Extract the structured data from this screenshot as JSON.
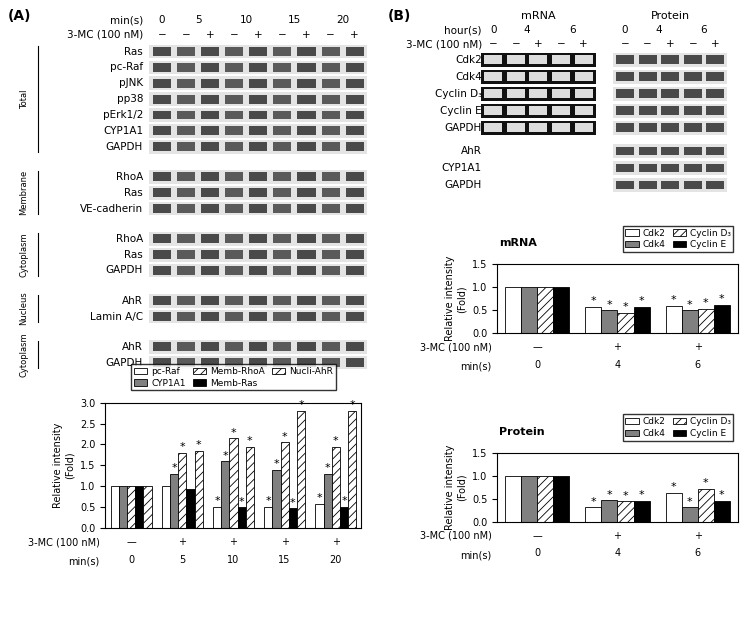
{
  "blots": {
    "A": {
      "panel_label": "(A)",
      "time_label": "min(s)",
      "times": [
        "0",
        "5",
        "10",
        "15",
        "20"
      ],
      "treatment_label": "3-MC (100 nM)",
      "treatment": [
        "−",
        "−",
        "+",
        "−",
        "+",
        "−",
        "+",
        "−",
        "+"
      ],
      "sections": [
        {
          "name": "Total",
          "rows": [
            "Ras",
            "pc-Raf",
            "pJNK",
            "pp38",
            "pErk1/2",
            "CYP1A1",
            "GAPDH"
          ]
        },
        {
          "name": "Membrane",
          "rows": [
            "RhoA",
            "Ras",
            "VE-cadherin"
          ]
        },
        {
          "name": "Cytoplasm",
          "rows": [
            "RhoA",
            "Ras",
            "GAPDH"
          ]
        },
        {
          "name": "Nucleus",
          "rows": [
            "AhR",
            "Lamin A/C"
          ]
        },
        {
          "name": "Cytoplasm",
          "rows": [
            "AhR",
            "GAPDH"
          ]
        }
      ]
    },
    "B": {
      "panel_label": "(B)",
      "time_label": "hour(s)",
      "times": [
        "0",
        "4",
        "6"
      ],
      "treatment_label": "3-MC (100 nM)",
      "treatment": [
        "−",
        "−",
        "+",
        "−",
        "+"
      ],
      "gels": [
        "mRNA",
        "Protein"
      ],
      "rows": [
        "Cdk2",
        "Cdk4",
        "Cyclin D₃",
        "Cyclin E",
        "GAPDH"
      ],
      "protein_rows": [
        "AhR",
        "CYP1A1",
        "GAPDH"
      ]
    }
  },
  "chart_data": [
    {
      "type": "bar",
      "ylabel": "Relative intensity\n(Fold)",
      "categories": [
        "0",
        "5",
        "10",
        "15",
        "20"
      ],
      "xlabel": "min(s)",
      "treatment_label": "3-MC (100 nM)",
      "treatment": [
        "—",
        "+",
        "+",
        "+",
        "+"
      ],
      "ylim": [
        0.0,
        3.0
      ],
      "yticks": [
        0.0,
        0.5,
        1.0,
        1.5,
        2.0,
        2.5,
        3.0
      ],
      "grid": false,
      "legend": "upper center",
      "series": [
        {
          "name": "pc-Raf",
          "color": "#ffffff",
          "values": [
            1.0,
            1.0,
            0.52,
            0.52,
            0.58
          ],
          "significance": [
            null,
            null,
            "*",
            "*",
            "*"
          ]
        },
        {
          "name": "CYP1A1",
          "color": "#808080",
          "values": [
            1.0,
            1.3,
            1.6,
            1.4,
            1.3
          ],
          "significance": [
            null,
            "*",
            "*",
            "*",
            "*"
          ]
        },
        {
          "name": "Memb-RhoA",
          "color": "#ffffff",
          "values": [
            1.0,
            1.8,
            2.15,
            2.05,
            1.95
          ],
          "significance": [
            null,
            "*",
            "*",
            "*",
            "*"
          ]
        },
        {
          "name": "Memb-Ras",
          "color": "#000000",
          "values": [
            1.0,
            0.95,
            0.5,
            0.48,
            0.52
          ],
          "significance": [
            null,
            null,
            "*",
            "*",
            "*"
          ]
        },
        {
          "name": "Nucli-AhR",
          "color": "#ffffff",
          "values": [
            1.0,
            1.85,
            1.95,
            2.8,
            2.8
          ],
          "significance": [
            null,
            "*",
            "*",
            "*",
            "*"
          ]
        }
      ]
    },
    {
      "type": "bar",
      "title": "mRNA",
      "ylabel": "Relative intensity\n(Fold)",
      "categories": [
        "0",
        "4",
        "6"
      ],
      "xlabel": "min(s)",
      "treatment_label": "3-MC (100 nM)",
      "treatment": [
        "—",
        "+",
        "+"
      ],
      "ylim": [
        0.0,
        1.5
      ],
      "yticks": [
        0.0,
        0.5,
        1.0,
        1.5
      ],
      "grid": false,
      "legend": "upper right",
      "series": [
        {
          "name": "Cdk2",
          "color": "#ffffff",
          "values": [
            1.0,
            0.58,
            0.6
          ],
          "significance": [
            null,
            "*",
            "*"
          ]
        },
        {
          "name": "Cdk4",
          "color": "#808080",
          "values": [
            1.0,
            0.5,
            0.5
          ],
          "significance": [
            null,
            "*",
            "*"
          ]
        },
        {
          "name": "Cyclin D₃",
          "color": "#ffffff",
          "values": [
            1.0,
            0.45,
            0.53
          ],
          "significance": [
            null,
            "*",
            "*"
          ]
        },
        {
          "name": "Cyclin E",
          "color": "#000000",
          "values": [
            1.0,
            0.57,
            0.62
          ],
          "significance": [
            null,
            "*",
            "*"
          ]
        }
      ]
    },
    {
      "type": "bar",
      "title": "Protein",
      "ylabel": "Relative intensity\n(Fold)",
      "categories": [
        "0",
        "4",
        "6"
      ],
      "xlabel": "min(s)",
      "treatment_label": "3-MC (100 nM)",
      "treatment": [
        "—",
        "+",
        "+"
      ],
      "ylim": [
        0.0,
        1.5
      ],
      "yticks": [
        0.0,
        0.5,
        1.0,
        1.5
      ],
      "grid": false,
      "legend": "upper right",
      "series": [
        {
          "name": "Cdk2",
          "color": "#ffffff",
          "values": [
            1.0,
            0.32,
            0.63
          ],
          "significance": [
            null,
            "*",
            "*"
          ]
        },
        {
          "name": "Cdk4",
          "color": "#808080",
          "values": [
            1.0,
            0.47,
            0.32
          ],
          "significance": [
            null,
            "*",
            "*"
          ]
        },
        {
          "name": "Cyclin D₃",
          "color": "#ffffff",
          "values": [
            1.0,
            0.45,
            0.72
          ],
          "significance": [
            null,
            "*",
            "*"
          ]
        },
        {
          "name": "Cyclin E",
          "color": "#000000",
          "values": [
            1.0,
            0.46,
            0.46
          ],
          "significance": [
            null,
            "*",
            "*"
          ]
        }
      ]
    }
  ]
}
